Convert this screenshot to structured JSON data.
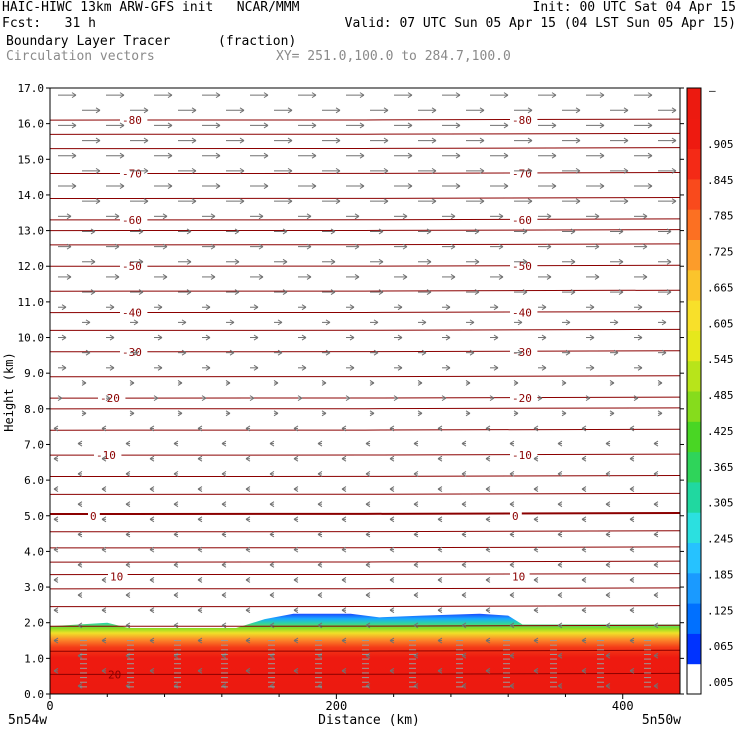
{
  "header": {
    "line1_left": "HAIC-HIWC 13km ARW-GFS init   NCAR/MMM",
    "line1_right": "Init: 00 UTC Sat 04 Apr 15",
    "line2_left": "Fcst:   31 h",
    "line2_right": "Valid: 07 UTC Sun 05 Apr 15 (04 LST Sun 05 Apr 15)",
    "line3_field": "Boundary Layer Tracer",
    "line3_units": "(fraction)",
    "line4_field": "Circulation vectors",
    "line4_xy": "XY= 251.0,100.0 to 284.7,100.0"
  },
  "chart_data": {
    "type": "heatmap",
    "xlabel": "Distance (km)",
    "ylabel": "Height (km)",
    "xlim": [
      0,
      440
    ],
    "ylim": [
      0,
      17
    ],
    "x_ticks": [
      0,
      200,
      400
    ],
    "x_tick_labels": [
      "0",
      "200",
      "400"
    ],
    "y_ticks": [
      0,
      1,
      2,
      3,
      4,
      5,
      6,
      7,
      8,
      9,
      10,
      11,
      12,
      13,
      14,
      15,
      16,
      17
    ],
    "y_tick_labels": [
      "0.0",
      "1.0",
      "2.0",
      "3.0",
      "4.0",
      "5.0",
      "6.0",
      "7.0",
      "8.0",
      "9.0",
      "10.0",
      "11.0",
      "12.0",
      "13.0",
      "14.0",
      "15.0",
      "16.0",
      "17.0"
    ],
    "x_endpoint_labels": [
      "5n54w",
      "5n50w"
    ],
    "boundary_layer_top_km": [
      [
        0,
        1.9
      ],
      [
        40,
        2.0
      ],
      [
        55,
        1.85
      ],
      [
        130,
        1.85
      ],
      [
        150,
        2.1
      ],
      [
        170,
        2.25
      ],
      [
        210,
        2.25
      ],
      [
        230,
        2.15
      ],
      [
        260,
        2.2
      ],
      [
        300,
        2.25
      ],
      [
        320,
        2.2
      ],
      [
        330,
        1.95
      ],
      [
        440,
        1.95
      ]
    ],
    "temperature_contours_c": {
      "label_values": [
        -80,
        -70,
        -60,
        -50,
        -40,
        -30,
        -20,
        -10,
        0,
        10,
        20
      ],
      "label_heights_km": [
        16.1,
        14.6,
        13.3,
        12.0,
        10.7,
        9.6,
        8.3,
        6.7,
        5.0,
        3.3,
        0.55
      ],
      "line_heights_km": [
        0.55,
        1.2,
        1.9,
        2.45,
        2.95,
        3.35,
        3.7,
        4.1,
        4.55,
        5.05,
        5.6,
        6.1,
        6.7,
        7.4,
        8.0,
        8.3,
        8.9,
        9.6,
        10.2,
        10.7,
        11.3,
        12.0,
        12.6,
        13.0,
        13.3,
        13.9,
        14.6,
        15.3,
        15.7,
        16.1
      ]
    },
    "colorbar": {
      "labels": [
        ".905",
        ".845",
        ".785",
        ".725",
        ".665",
        ".605",
        ".545",
        ".485",
        ".425",
        ".365",
        ".305",
        ".245",
        ".185",
        ".125",
        ".065",
        ".005"
      ],
      "top_label": "–",
      "colors": [
        "#ffffff",
        "#0033ff",
        "#0070ff",
        "#1a9aff",
        "#26c2ff",
        "#2be0e0",
        "#20d8a0",
        "#2fd45a",
        "#49d624",
        "#86dc1c",
        "#b8e41a",
        "#e6e81c",
        "#f8e02a",
        "#fbc42c",
        "#fc9c2a",
        "#fc7022",
        "#f94a1c",
        "#f42a16",
        "#ee1a10",
        "#ec1a10"
      ]
    },
    "colors": {
      "temperature_contour": "#8b0000",
      "vector": "#707070",
      "axis": "#000000"
    }
  }
}
